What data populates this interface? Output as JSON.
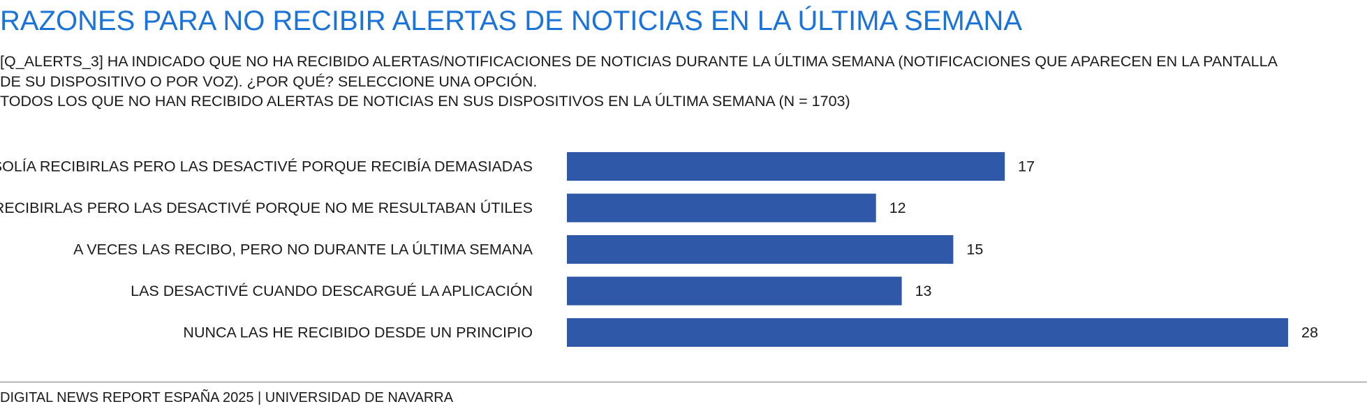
{
  "title": "RAZONES PARA NO RECIBIR ALERTAS DE NOTICIAS EN LA ÚLTIMA SEMANA",
  "subtitle_lines": [
    "[Q_ALERTS_3] HA INDICADO QUE NO HA RECIBIDO ALERTAS/NOTIFICACIONES DE NOTICIAS DURANTE LA ÚLTIMA SEMANA (NOTIFICACIONES QUE APARECEN EN LA PANTALLA",
    "DE SU DISPOSITIVO O POR VOZ). ¿POR QUÉ? SELECCIONE UNA OPCIÓN.",
    "TODOS LOS QUE NO HAN RECIBIDO ALERTAS DE NOTICIAS EN SUS DISPOSITIVOS EN LA ÚLTIMA SEMANA (N = 1703)"
  ],
  "footer": "DIGITAL NEWS REPORT ESPAÑA 2025 | UNIVERSIDAD DE NAVARRA",
  "colors": {
    "bar": "#2f58a8",
    "title": "#1a73d9",
    "text": "#1a1a1a",
    "rule": "#777777"
  },
  "chart_data": {
    "type": "bar",
    "orientation": "horizontal",
    "categories": [
      "SOLÍA RECIBIRLAS PERO LAS DESACTIVÉ PORQUE RECIBÍA DEMASIADAS",
      "SOLÍA RECIBIRLAS PERO LAS DESACTIVÉ PORQUE NO ME RESULTABAN ÚTILES",
      "A VECES LAS RECIBO, PERO NO DURANTE LA ÚLTIMA SEMANA",
      "LAS DESACTIVÉ CUANDO DESCARGUÉ LA APLICACIÓN",
      "NUNCA LAS HE RECIBIDO DESDE UN PRINCIPIO"
    ],
    "values": [
      17,
      12,
      15,
      13,
      28
    ],
    "xlim": [
      0,
      30
    ],
    "grid": false,
    "data_labels": true
  }
}
